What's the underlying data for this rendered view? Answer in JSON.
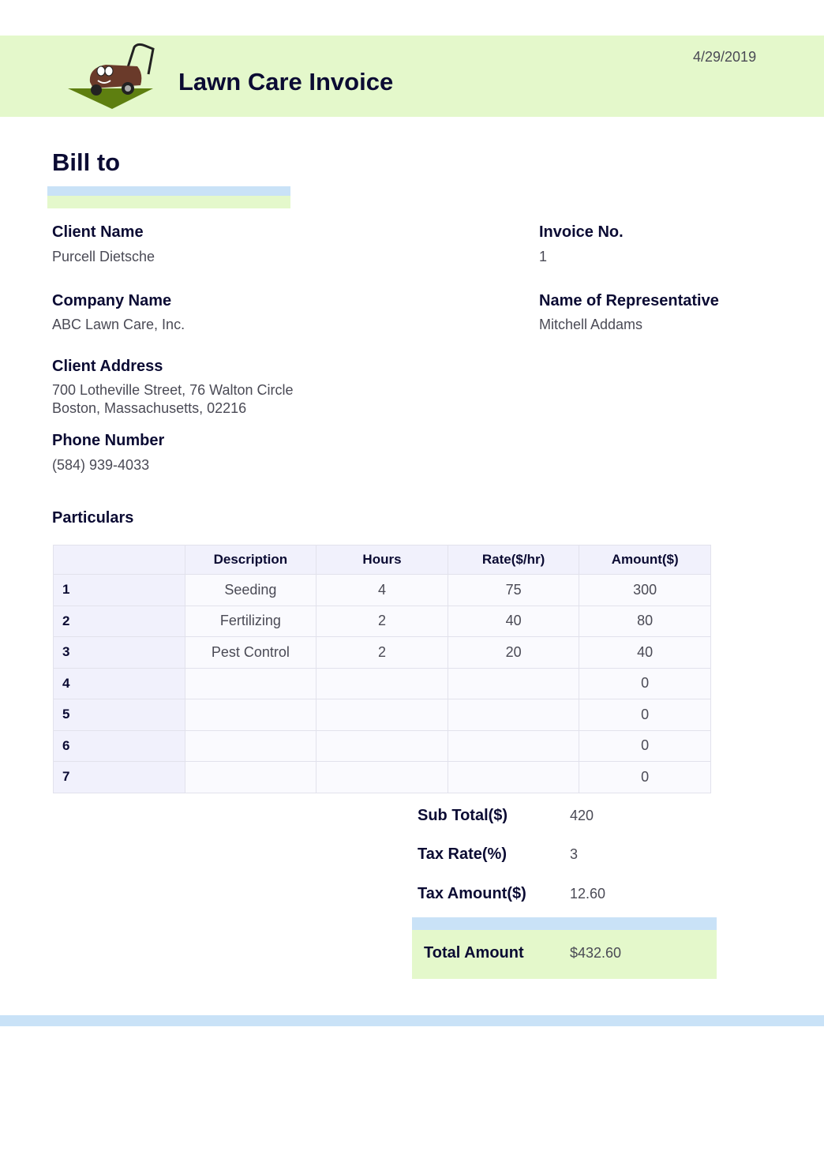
{
  "header": {
    "title": "Lawn Care Invoice",
    "date": "4/29/2019",
    "logo": "lawn-mower-mascot"
  },
  "bill_to": {
    "heading": "Bill to",
    "client_name_label": "Client Name",
    "client_name": "Purcell Dietsche",
    "company_label": "Company Name",
    "company": "ABC Lawn Care, Inc.",
    "address_label": "Client Address",
    "address_line1": "700 Lotheville Street, 76 Walton Circle",
    "address_line2": "Boston, Massachusetts, 02216",
    "phone_label": "Phone Number",
    "phone": "(584) 939-4033",
    "invoice_no_label": "Invoice No.",
    "invoice_no": "1",
    "rep_label": "Name of Representative",
    "rep": "Mitchell Addams"
  },
  "particulars": {
    "heading": "Particulars",
    "columns": [
      "",
      "Description",
      "Hours",
      "Rate($/hr)",
      "Amount($)"
    ],
    "rows": [
      [
        "1",
        "Seeding",
        "4",
        "75",
        "300"
      ],
      [
        "2",
        "Fertilizing",
        "2",
        "40",
        "80"
      ],
      [
        "3",
        "Pest Control",
        "2",
        "20",
        "40"
      ],
      [
        "4",
        "",
        "",
        "",
        "0"
      ],
      [
        "5",
        "",
        "",
        "",
        "0"
      ],
      [
        "6",
        "",
        "",
        "",
        "0"
      ],
      [
        "7",
        "",
        "",
        "",
        "0"
      ]
    ]
  },
  "totals": {
    "subtotal_label": "Sub Total($)",
    "subtotal": "420",
    "tax_rate_label": "Tax Rate(%)",
    "tax_rate": "3",
    "tax_amount_label": "Tax Amount($)",
    "tax_amount": "12.60",
    "total_label": "Total Amount",
    "total": "$432.60"
  },
  "colors": {
    "green": "#e4f8cb",
    "blue": "#c9e2f7",
    "text": "#0b0b33"
  }
}
